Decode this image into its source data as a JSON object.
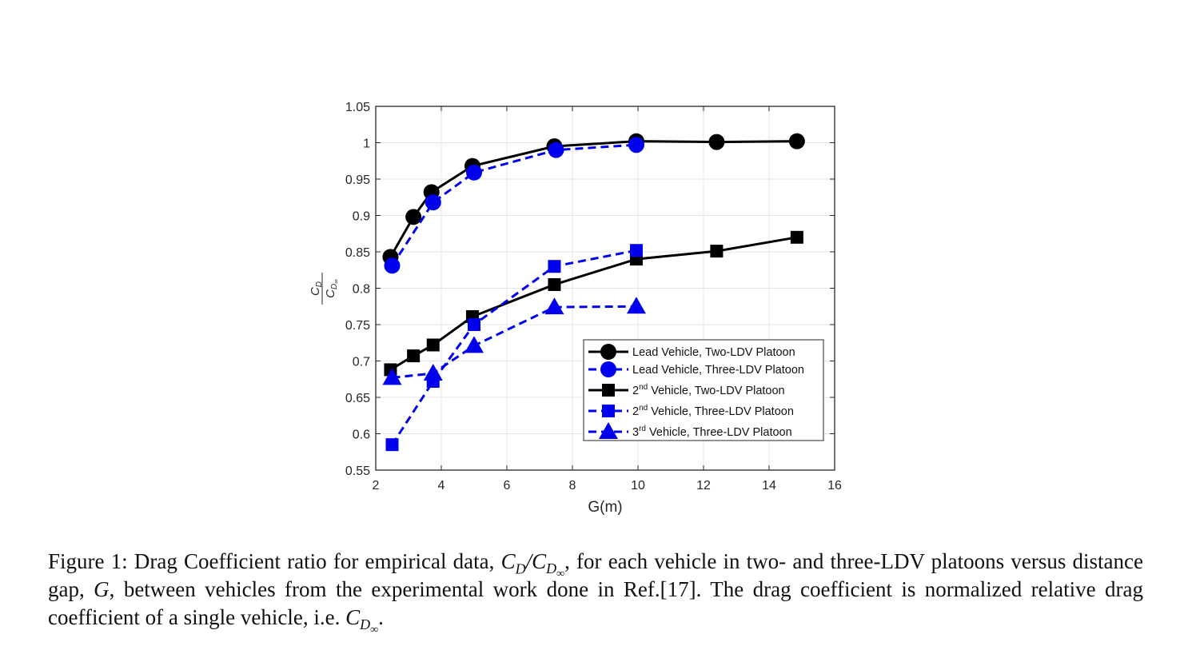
{
  "chart_data": {
    "type": "line",
    "xlabel": "G(m)",
    "ylabel": {
      "numerator": "C",
      "numerator_sub": "D",
      "denominator": "C",
      "denominator_sub": "D",
      "denominator_subsub": "∞"
    },
    "xlim": [
      2,
      16
    ],
    "ylim": [
      0.55,
      1.05
    ],
    "xticks": [
      2,
      4,
      6,
      8,
      10,
      12,
      14,
      16
    ],
    "xtick_labels": [
      "2",
      "4",
      "6",
      "8",
      "10",
      "12",
      "14",
      "16"
    ],
    "yticks": [
      0.55,
      0.6,
      0.65,
      0.7,
      0.75,
      0.8,
      0.85,
      0.9,
      0.95,
      1.0,
      1.05
    ],
    "ytick_labels": [
      "0.55",
      "0.6",
      "0.65",
      "0.7",
      "0.75",
      "0.8",
      "0.85",
      "0.9",
      "0.95",
      "1",
      "1.05"
    ],
    "grid": true,
    "legend_position": "lower-right",
    "series": [
      {
        "name": "Lead Vehicle, Two-LDV Platoon",
        "name_sup": "",
        "name_rest": "",
        "color": "#000000",
        "dash": "solid",
        "marker": "circle",
        "x": [
          2.45,
          3.15,
          3.7,
          4.95,
          7.45,
          9.95,
          12.4,
          14.85
        ],
        "y": [
          0.843,
          0.898,
          0.932,
          0.968,
          0.995,
          1.002,
          1.001,
          1.002
        ]
      },
      {
        "name": "Lead Vehicle, Three-LDV Platoon",
        "name_sup": "",
        "name_rest": "",
        "color": "#0000ee",
        "dash": "dashed",
        "marker": "circle",
        "x": [
          2.5,
          3.75,
          5.0,
          7.5,
          9.95
        ],
        "y": [
          0.831,
          0.918,
          0.959,
          0.99,
          0.997
        ]
      },
      {
        "name": "2",
        "name_sup": "nd",
        "name_rest": " Vehicle, Two-LDV Platoon",
        "color": "#000000",
        "dash": "solid",
        "marker": "square",
        "x": [
          2.45,
          3.15,
          3.75,
          4.95,
          7.45,
          9.95,
          12.4,
          14.85
        ],
        "y": [
          0.688,
          0.707,
          0.722,
          0.761,
          0.805,
          0.84,
          0.851,
          0.87
        ]
      },
      {
        "name": "2",
        "name_sup": "nd",
        "name_rest": " Vehicle, Three-LDV Platoon",
        "color": "#0000ee",
        "dash": "dashed",
        "marker": "square",
        "x": [
          2.5,
          3.75,
          5.0,
          7.45,
          9.95
        ],
        "y": [
          0.585,
          0.672,
          0.75,
          0.83,
          0.852
        ]
      },
      {
        "name": "3",
        "name_sup": "rd",
        "name_rest": " Vehicle, Three-LDV Platoon",
        "color": "#0000ee",
        "dash": "dashed",
        "marker": "triangle",
        "x": [
          2.5,
          3.75,
          5.0,
          7.45,
          9.95
        ],
        "y": [
          0.677,
          0.683,
          0.721,
          0.774,
          0.775
        ]
      }
    ]
  },
  "caption": {
    "lead": "Figure 1:  Drag Coefficient ratio for empirical data, ",
    "math1_C": "C",
    "math1_D": "D",
    "math1_slash": "/",
    "math1_C2": "C",
    "math1_D2": "D",
    "math1_inf": "∞",
    "mid1": ", for each vehicle in two- and three-LDV platoons versus distance gap, ",
    "G": "G",
    "mid2": ", between vehicles from the experimental work done in Ref.[17].  The drag coefficient is normalized relative drag coefficient of a single vehicle, i.e. ",
    "math2_C": "C",
    "math2_D": "D",
    "math2_inf": "∞",
    "end": "."
  }
}
